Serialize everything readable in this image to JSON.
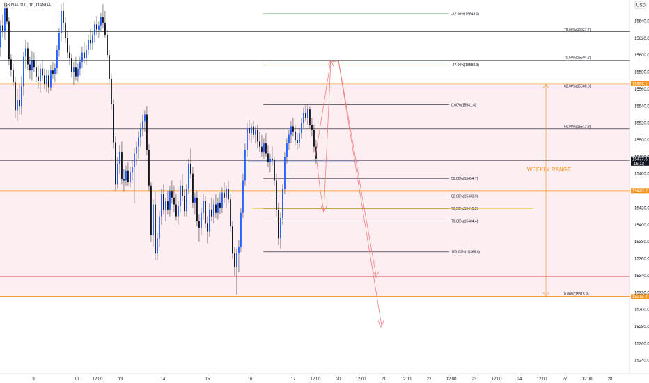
{
  "header": {
    "symbol": "US Nas 100, 1h, OANDA",
    "currency": "USD"
  },
  "chart_data": {
    "type": "candlestick",
    "y_ticks": [
      "15640.0",
      "15620.0",
      "15600.0",
      "15580.0",
      "15560.0",
      "15540.0",
      "15520.0",
      "15500.0",
      "15480.0",
      "15460.0",
      "15440.0",
      "15420.0",
      "15400.0",
      "15380.0",
      "15360.0",
      "15340.0",
      "15320.0",
      "15300.0",
      "15280.0",
      "15260.0",
      "15240.0"
    ],
    "y_range": [
      15225,
      15665
    ],
    "x_ticks": [
      "9",
      "10",
      "12:00",
      "13",
      "14",
      "15",
      "16",
      "17",
      "12:00",
      "20",
      "12:00",
      "21",
      "12:00",
      "22",
      "12:00",
      "23",
      "12:00",
      "24",
      "12:00",
      "27",
      "12:00",
      "28"
    ],
    "price_tags": [
      {
        "text": "15566.1",
        "value": 15566.1,
        "color": "#f7931a"
      },
      {
        "text": "15477.6",
        "value": 15477.6,
        "color": "#131722",
        "sub": "16:13"
      },
      {
        "text": "15440.2",
        "value": 15440.2,
        "color": "#f7931a"
      },
      {
        "text": "15315.4",
        "value": 15315.4,
        "color": "#f7931a"
      }
    ],
    "fib_extension_levels": [
      {
        "label": "-62.00%(15649.0)",
        "value": 15649.0,
        "color": "#4caf50"
      },
      {
        "label": "-27.00%(15588.3)",
        "value": 15588.3,
        "color": "#4caf50"
      },
      {
        "label": "0.00%(15541.4)",
        "value": 15541.4,
        "color": "#131722"
      },
      {
        "label": "50.00%(15454.7)",
        "value": 15454.7,
        "color": "#131722"
      },
      {
        "label": "62.00%(15433.9)",
        "value": 15433.9,
        "color": "#131722"
      },
      {
        "label": "70.50%(15419.2)",
        "value": 15419.2,
        "color": "#131722"
      },
      {
        "label": "79.00%(15404.4)",
        "value": 15404.4,
        "color": "#131722"
      },
      {
        "label": "100.00%(15368.0)",
        "value": 15368.0,
        "color": "#131722"
      }
    ],
    "fib_weekly_levels": [
      {
        "label": "79.00%(15627.7)",
        "value": 15627.7
      },
      {
        "label": "70.50%(15594.2)",
        "value": 15594.2
      },
      {
        "label": "62.00%(15560.6)",
        "value": 15560.6
      },
      {
        "label": "50.00%(15513.3)",
        "value": 15513.3
      },
      {
        "label": "0.00%(15315.9)",
        "value": 15315.9
      }
    ],
    "range_label": "WEEKLY RANGE",
    "weekly_range": {
      "high": 15566.1,
      "mid": 15440.2,
      "low": 15315.4
    },
    "current_price": 15477.6
  }
}
